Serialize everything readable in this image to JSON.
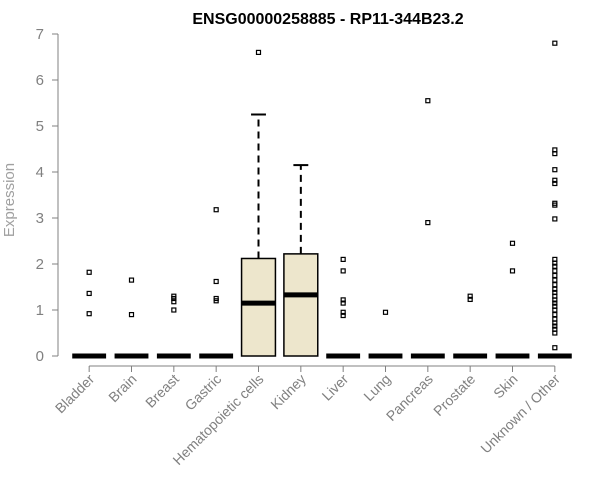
{
  "chart_data": {
    "type": "box",
    "title": "ENSG00000258885 - RP11-344B23.2",
    "xlabel": "",
    "ylabel": "Expression",
    "ylim": [
      0,
      7
    ],
    "yticks": [
      0,
      1,
      2,
      3,
      4,
      5,
      6,
      7
    ],
    "grid": false,
    "box_fill": "#ede6cc",
    "box_stroke": "#000000",
    "categories": [
      "Bladder",
      "Brain",
      "Breast",
      "Gastric",
      "Hematopoietic cells",
      "Kidney",
      "Liver",
      "Lung",
      "Pancreas",
      "Prostate",
      "Skin",
      "Unknown / Other"
    ],
    "boxes": [
      {
        "category": "Bladder",
        "q1": 0,
        "median": 0,
        "q3": 0,
        "whisker_low": 0,
        "whisker_high": 0,
        "outliers": [
          0.92,
          1.36,
          1.82
        ]
      },
      {
        "category": "Brain",
        "q1": 0,
        "median": 0,
        "q3": 0,
        "whisker_low": 0,
        "whisker_high": 0,
        "outliers": [
          0.9,
          1.65
        ]
      },
      {
        "category": "Breast",
        "q1": 0,
        "median": 0,
        "q3": 0,
        "whisker_low": 0,
        "whisker_high": 0,
        "outliers": [
          1.0,
          1.18,
          1.25,
          1.3
        ]
      },
      {
        "category": "Gastric",
        "q1": 0,
        "median": 0,
        "q3": 0,
        "whisker_low": 0,
        "whisker_high": 0,
        "outliers": [
          1.2,
          1.25,
          1.62,
          3.18
        ]
      },
      {
        "category": "Hematopoietic cells",
        "q1": 0,
        "median": 1.15,
        "q3": 2.12,
        "whisker_low": 0,
        "whisker_high": 5.25,
        "outliers": [
          6.6
        ]
      },
      {
        "category": "Kidney",
        "q1": 0,
        "median": 1.33,
        "q3": 2.22,
        "whisker_low": 0,
        "whisker_high": 4.15,
        "outliers": []
      },
      {
        "category": "Liver",
        "q1": 0,
        "median": 0,
        "q3": 0,
        "whisker_low": 0,
        "whisker_high": 0,
        "outliers": [
          0.88,
          0.95,
          1.15,
          1.22,
          1.85,
          2.1
        ]
      },
      {
        "category": "Lung",
        "q1": 0,
        "median": 0,
        "q3": 0,
        "whisker_low": 0,
        "whisker_high": 0,
        "outliers": [
          0.95
        ]
      },
      {
        "category": "Pancreas",
        "q1": 0,
        "median": 0,
        "q3": 0,
        "whisker_low": 0,
        "whisker_high": 0,
        "outliers": [
          2.9,
          5.55
        ]
      },
      {
        "category": "Prostate",
        "q1": 0,
        "median": 0,
        "q3": 0,
        "whisker_low": 0,
        "whisker_high": 0,
        "outliers": [
          1.23,
          1.3
        ]
      },
      {
        "category": "Skin",
        "q1": 0,
        "median": 0,
        "q3": 0,
        "whisker_low": 0,
        "whisker_high": 0,
        "outliers": [
          1.85,
          2.45
        ]
      },
      {
        "category": "Unknown / Other",
        "q1": 0,
        "median": 0,
        "q3": 0,
        "whisker_low": 0,
        "whisker_high": 0,
        "outliers": [
          0.18,
          0.5,
          0.58,
          0.65,
          0.72,
          0.8,
          0.9,
          1.0,
          1.08,
          1.15,
          1.22,
          1.3,
          1.38,
          1.45,
          1.55,
          1.65,
          1.75,
          1.85,
          1.95,
          2.02,
          2.1,
          2.98,
          3.28,
          3.32,
          3.75,
          3.82,
          4.05,
          4.4,
          4.48,
          6.8
        ]
      }
    ]
  }
}
